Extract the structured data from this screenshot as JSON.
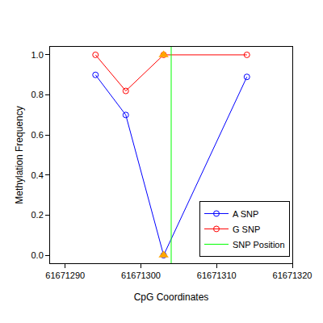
{
  "chart_data": {
    "type": "line",
    "x_label": "CpG Coordinates",
    "y_label": "Methylation Frequency",
    "xlim": [
      61671288,
      61671320
    ],
    "xticks": [
      61671290,
      61671300,
      61671310,
      61671320
    ],
    "ylim": [
      -0.04,
      1.04
    ],
    "yticks": [
      {
        "value": 0,
        "label": "0.0"
      },
      {
        "value": 0.2,
        "label": "0.2"
      },
      {
        "value": 0.4,
        "label": "0.4"
      },
      {
        "value": 0.6,
        "label": "0.6"
      },
      {
        "value": 0.8,
        "label": "0.8"
      },
      {
        "value": 1,
        "label": "1.0"
      }
    ],
    "grid": false,
    "legend": "bottom right",
    "series": [
      {
        "name": "A SNP",
        "color": "#0000ff",
        "type": "line",
        "marker": "circle-open",
        "x": [
          61671294,
          61671298,
          61671303,
          61671314
        ],
        "values": [
          0.9,
          0.7,
          0.0,
          0.89
        ]
      },
      {
        "name": "G SNP",
        "color": "#ff0000",
        "type": "line",
        "marker": "circle-open",
        "x": [
          61671294,
          61671298,
          61671303,
          61671314
        ],
        "values": [
          1.0,
          0.82,
          1.0,
          1.0
        ]
      },
      {
        "name": "SNP Position",
        "color": "#00ff00",
        "type": "vline",
        "x": [
          61671304
        ]
      },
      {
        "color": "#ffa500",
        "type": "scatter",
        "marker": "triangle-up",
        "x": [
          61671303,
          61671303
        ],
        "values": [
          1.0,
          0.0
        ]
      }
    ]
  }
}
